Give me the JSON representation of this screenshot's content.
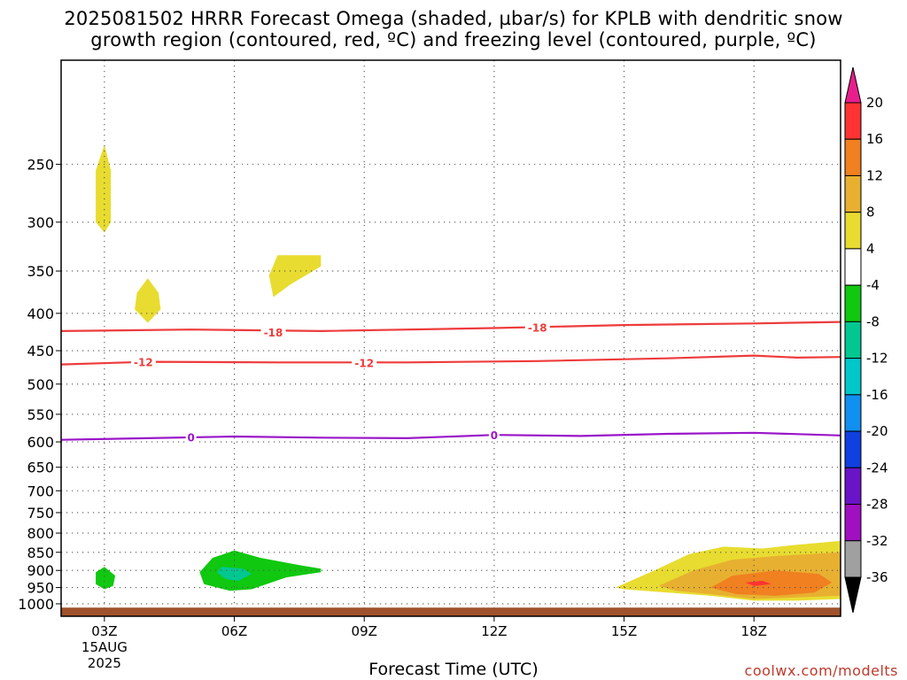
{
  "header": {
    "title_line1": "2025081502 HRRR Forecast Omega (shaded, µbar/s) for KPLB with dendritic snow",
    "title_line2": "growth region (contoured, red, ºC) and freezing level (contoured, purple, ºC)"
  },
  "footer": {
    "x_title": "Forecast Time (UTC)",
    "credit": "coolwx.com/modelts"
  },
  "chart_data": {
    "type": "heatmap",
    "title": "2025081502 HRRR Forecast Omega (shaded, µbar/s) for KPLB with dendritic snow growth region (contoured, red, ºC) and freezing level (contoured, purple, ºC)",
    "xlabel": "Forecast Time (UTC)",
    "ylabel": "",
    "x_unit": "hours (UTC, 15 Aug 2025)",
    "xlim": [
      2,
      20
    ],
    "x_ticks": [
      {
        "x": 3,
        "label": "03Z",
        "sub1": "15AUG",
        "sub2": "2025"
      },
      {
        "x": 6,
        "label": "06Z"
      },
      {
        "x": 9,
        "label": "09Z"
      },
      {
        "x": 12,
        "label": "12Z"
      },
      {
        "x": 15,
        "label": "15Z"
      },
      {
        "x": 18,
        "label": "18Z"
      }
    ],
    "y_scale": "log-pressure (inverted)",
    "ylim": [
      1040,
      180
    ],
    "y_ticks": [
      250,
      300,
      350,
      400,
      450,
      500,
      550,
      600,
      650,
      700,
      750,
      800,
      850,
      900,
      950,
      1000
    ],
    "grid": true,
    "colorbar": {
      "position": "right",
      "labels": [
        "20",
        "16",
        "12",
        "8",
        "4",
        "-4",
        "-8",
        "-12",
        "-16",
        "-20",
        "-24",
        "-28",
        "-32",
        "-36"
      ],
      "colors": [
        "#e81e8c",
        "#ff3333",
        "#f08020",
        "#e8b030",
        "#e8dc30",
        "#ffffff",
        "#10c810",
        "#00c890",
        "#00c8c8",
        "#1090f0",
        "#1040e0",
        "#6a14c8",
        "#a010c0",
        "#a0a0a0",
        "#000000"
      ]
    },
    "contours": [
      {
        "name": "-18",
        "color": "#ee3b3b",
        "points": [
          [
            2,
            423
          ],
          [
            5,
            421
          ],
          [
            8,
            423
          ],
          [
            12,
            419
          ],
          [
            15,
            415
          ],
          [
            18,
            413
          ],
          [
            20,
            411
          ]
        ],
        "labels": [
          {
            "x": 6.9,
            "p": 424,
            "text": "-18"
          },
          {
            "x": 13.0,
            "p": 418,
            "text": "-18"
          }
        ]
      },
      {
        "name": "-12",
        "color": "#ee3b3b",
        "points": [
          [
            2,
            470
          ],
          [
            4,
            466
          ],
          [
            7,
            467
          ],
          [
            10,
            467
          ],
          [
            13,
            465
          ],
          [
            16,
            461
          ],
          [
            18,
            457
          ],
          [
            19,
            460
          ],
          [
            20,
            459
          ]
        ],
        "labels": [
          {
            "x": 3.9,
            "p": 466,
            "text": "-12"
          },
          {
            "x": 9.0,
            "p": 467,
            "text": "-12"
          }
        ]
      },
      {
        "name": "0",
        "color": "#9a16c8",
        "points": [
          [
            2,
            596
          ],
          [
            4,
            593
          ],
          [
            6,
            590
          ],
          [
            8,
            592
          ],
          [
            10,
            593
          ],
          [
            12,
            587
          ],
          [
            14,
            589
          ],
          [
            16,
            585
          ],
          [
            18,
            583
          ],
          [
            20,
            588
          ]
        ],
        "labels": [
          {
            "x": 5.0,
            "p": 591,
            "text": "0"
          },
          {
            "x": 12.0,
            "p": 587,
            "text": "0"
          }
        ]
      }
    ],
    "shaded_regions": [
      {
        "range": "4 to 8",
        "color": "#e8dc30",
        "points": [
          [
            3.0,
            235
          ],
          [
            3.15,
            255
          ],
          [
            3.15,
            300
          ],
          [
            3.0,
            310
          ],
          [
            2.8,
            300
          ],
          [
            2.8,
            255
          ]
        ]
      },
      {
        "range": "4 to 8",
        "color": "#e8dc30",
        "points": [
          [
            4.0,
            358
          ],
          [
            4.25,
            375
          ],
          [
            4.3,
            395
          ],
          [
            4.0,
            412
          ],
          [
            3.7,
            395
          ],
          [
            3.75,
            375
          ]
        ]
      },
      {
        "range": "4 to 8",
        "color": "#e8dc30",
        "points": [
          [
            7.0,
            333
          ],
          [
            8.0,
            333
          ],
          [
            8.0,
            345
          ],
          [
            7.3,
            365
          ],
          [
            6.9,
            380
          ],
          [
            6.8,
            355
          ]
        ]
      },
      {
        "range": "-8 to -4",
        "color": "#10c810",
        "points": [
          [
            3.0,
            890
          ],
          [
            3.25,
            915
          ],
          [
            3.2,
            945
          ],
          [
            3.0,
            955
          ],
          [
            2.8,
            940
          ],
          [
            2.8,
            905
          ]
        ]
      },
      {
        "range": "-8 to -4",
        "color": "#10c810",
        "points": [
          [
            6.0,
            845
          ],
          [
            6.6,
            865
          ],
          [
            7.5,
            885
          ],
          [
            8.0,
            895
          ],
          [
            8.0,
            905
          ],
          [
            7.2,
            920
          ],
          [
            6.4,
            955
          ],
          [
            5.9,
            960
          ],
          [
            5.3,
            940
          ],
          [
            5.2,
            905
          ],
          [
            5.5,
            865
          ]
        ]
      },
      {
        "range": "-12 to -8",
        "color": "#00c890",
        "points": [
          [
            5.7,
            890
          ],
          [
            6.2,
            895
          ],
          [
            6.4,
            910
          ],
          [
            6.1,
            930
          ],
          [
            5.8,
            925
          ],
          [
            5.6,
            905
          ]
        ]
      },
      {
        "range": "4 to 8",
        "color": "#e8dc30",
        "points": [
          [
            14.8,
            950
          ],
          [
            15.7,
            900
          ],
          [
            16.5,
            855
          ],
          [
            17.3,
            835
          ],
          [
            18.2,
            840
          ],
          [
            19.0,
            830
          ],
          [
            20,
            820
          ],
          [
            20,
            985
          ],
          [
            19.0,
            990
          ],
          [
            18.0,
            990
          ],
          [
            17.0,
            975
          ],
          [
            16.0,
            965
          ],
          [
            15.0,
            955
          ]
        ]
      },
      {
        "range": "8 to 12",
        "color": "#e8b030",
        "points": [
          [
            15.8,
            945
          ],
          [
            16.6,
            900
          ],
          [
            17.5,
            870
          ],
          [
            18.5,
            860
          ],
          [
            20,
            850
          ],
          [
            20,
            975
          ],
          [
            19.0,
            980
          ],
          [
            18.0,
            985
          ],
          [
            17.0,
            970
          ],
          [
            16.2,
            960
          ]
        ]
      },
      {
        "range": "12 to 16",
        "color": "#f08020",
        "points": [
          [
            17.0,
            950
          ],
          [
            17.5,
            915
          ],
          [
            18.5,
            900
          ],
          [
            19.5,
            910
          ],
          [
            19.8,
            935
          ],
          [
            19.4,
            965
          ],
          [
            18.5,
            975
          ],
          [
            17.6,
            970
          ]
        ]
      },
      {
        "range": "16 to 20",
        "color": "#ff3333",
        "points": [
          [
            17.8,
            935
          ],
          [
            18.2,
            930
          ],
          [
            18.4,
            940
          ],
          [
            18.0,
            945
          ]
        ]
      }
    ],
    "terrain": {
      "color": "#a0522d",
      "surface_pressure": 1012
    }
  }
}
